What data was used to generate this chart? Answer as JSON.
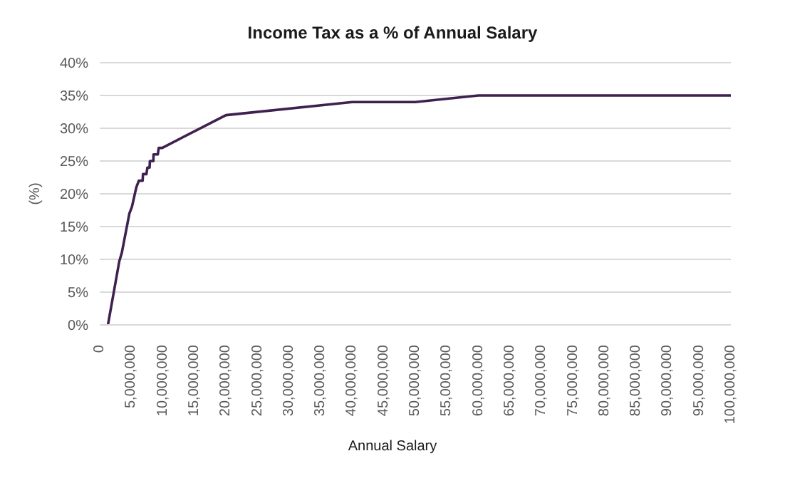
{
  "chart_data": {
    "type": "line",
    "title": "Income Tax as a % of Annual Salary",
    "xlabel": "Annual Salary",
    "ylabel": "(%)",
    "x": [
      1300000,
      3100000,
      3500000,
      4700000,
      5100000,
      5800000,
      6200000,
      6800000,
      6850000,
      7400000,
      7550000,
      7900000,
      7950000,
      8500000,
      8520000,
      9200000,
      9350000,
      9900000,
      20000000,
      40000000,
      50000000,
      60000000,
      100000000
    ],
    "series": [
      {
        "color": "#3f2150",
        "values": [
          0,
          9.7,
          11,
          17,
          18,
          21,
          22,
          22,
          23,
          23,
          24,
          24,
          25,
          25,
          26,
          26,
          27,
          27,
          32,
          34,
          34,
          35,
          35
        ]
      }
    ],
    "xlim": [
      0,
      100000000
    ],
    "xticks": [
      {
        "value": 0,
        "label": "0"
      },
      {
        "value": 5000000,
        "label": "5,000,000"
      },
      {
        "value": 10000000,
        "label": "10,000,000"
      },
      {
        "value": 15000000,
        "label": "15,000,000"
      },
      {
        "value": 20000000,
        "label": "20,000,000"
      },
      {
        "value": 25000000,
        "label": "25,000,000"
      },
      {
        "value": 30000000,
        "label": "30,000,000"
      },
      {
        "value": 35000000,
        "label": "35,000,000"
      },
      {
        "value": 40000000,
        "label": "40,000,000"
      },
      {
        "value": 45000000,
        "label": "45,000,000"
      },
      {
        "value": 50000000,
        "label": "50,000,000"
      },
      {
        "value": 55000000,
        "label": "55,000,000"
      },
      {
        "value": 60000000,
        "label": "60,000,000"
      },
      {
        "value": 65000000,
        "label": "65,000,000"
      },
      {
        "value": 70000000,
        "label": "70,000,000"
      },
      {
        "value": 75000000,
        "label": "75,000,000"
      },
      {
        "value": 80000000,
        "label": "80,000,000"
      },
      {
        "value": 85000000,
        "label": "85,000,000"
      },
      {
        "value": 90000000,
        "label": "90,000,000"
      },
      {
        "value": 95000000,
        "label": "95,000,000"
      },
      {
        "value": 100000000,
        "label": "100,000,000"
      }
    ],
    "ylim": [
      0,
      40
    ],
    "yticks": [
      {
        "value": 0,
        "label": "0%"
      },
      {
        "value": 5,
        "label": "5%"
      },
      {
        "value": 10,
        "label": "10%"
      },
      {
        "value": 15,
        "label": "15%"
      },
      {
        "value": 20,
        "label": "20%"
      },
      {
        "value": 25,
        "label": "25%"
      },
      {
        "value": 30,
        "label": "30%"
      },
      {
        "value": 35,
        "label": "35%"
      },
      {
        "value": 40,
        "label": "40%"
      }
    ],
    "grid": "y",
    "marker": "none",
    "line_style": "solid",
    "legend": false
  }
}
